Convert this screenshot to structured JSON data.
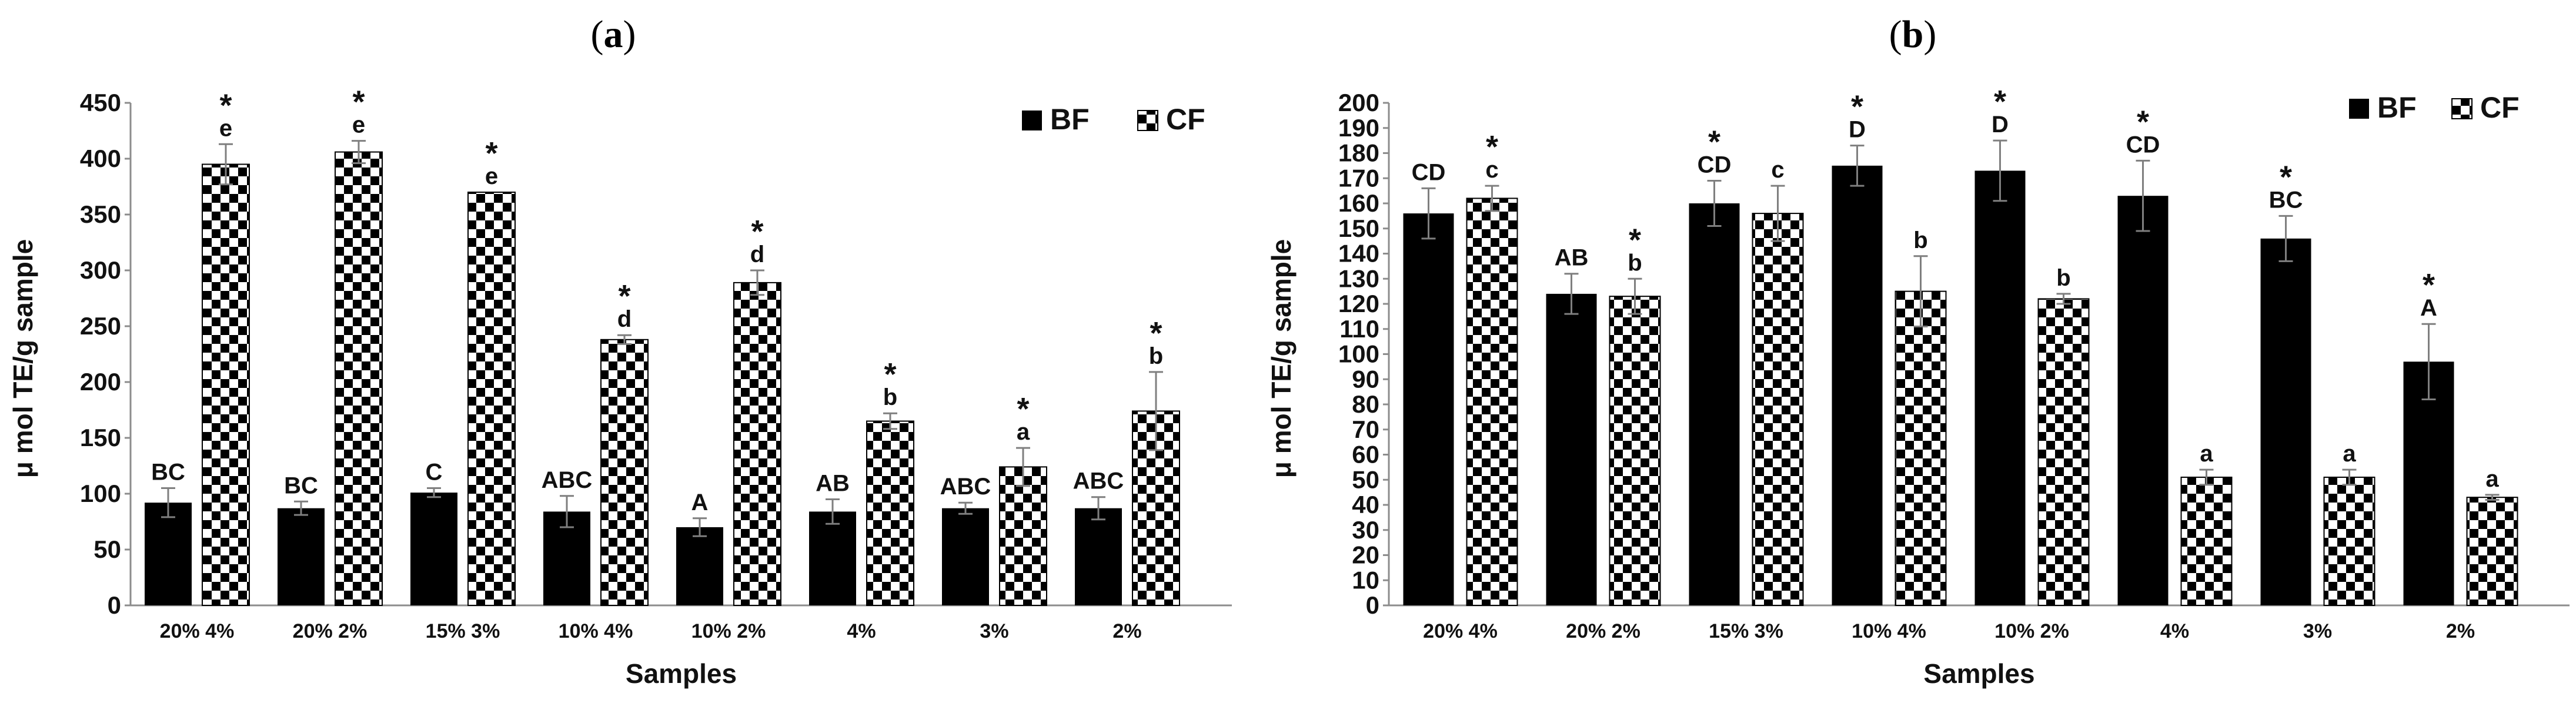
{
  "colors": {
    "bf": "#000000",
    "cf_pattern_dark": "#000000",
    "cf_pattern_light": "#ffffff",
    "axis": "#8c8c8c",
    "error_bar": "#7f7f7f"
  },
  "chart_data": [
    {
      "panel": "(a)",
      "panel_letter": "a",
      "type": "bar",
      "ylabel": "μ mol TE/g sample",
      "xlabel": "Samples",
      "ylim": [
        0,
        450
      ],
      "yticks": [
        0,
        50,
        100,
        150,
        200,
        250,
        300,
        350,
        400,
        450
      ],
      "grid": false,
      "legend_position": "top-right",
      "categories": [
        "20% 4%",
        "20% 2%",
        "15% 3%",
        "10% 4%",
        "10% 2%",
        "4%",
        "3%",
        "2%"
      ],
      "series": [
        {
          "name": "BF",
          "values": [
            92,
            87,
            101,
            84,
            70,
            84,
            87,
            87
          ],
          "errors": [
            13,
            6,
            4,
            14,
            8,
            11,
            5,
            10
          ],
          "letters": [
            "BC",
            "BC",
            "C",
            "ABC",
            "A",
            "AB",
            "ABC",
            "ABC"
          ],
          "stars": [
            false,
            false,
            false,
            false,
            false,
            false,
            false,
            false
          ]
        },
        {
          "name": "CF",
          "values": [
            395,
            406,
            370,
            238,
            289,
            165,
            124,
            174
          ],
          "errors": [
            18,
            10,
            0,
            4,
            11,
            7,
            17,
            35
          ],
          "letters": [
            "e",
            "e",
            "e",
            "d",
            "d",
            "b",
            "a",
            "b"
          ],
          "stars": [
            true,
            true,
            true,
            true,
            true,
            true,
            true,
            true
          ]
        }
      ]
    },
    {
      "panel": "(b)",
      "panel_letter": "b",
      "type": "bar",
      "ylabel": "μ mol TE/g sample",
      "xlabel": "Samples",
      "ylim": [
        0,
        200
      ],
      "yticks": [
        0,
        10,
        20,
        30,
        40,
        50,
        60,
        70,
        80,
        90,
        100,
        110,
        120,
        130,
        140,
        150,
        160,
        170,
        180,
        190,
        200
      ],
      "grid": false,
      "legend_position": "top-right",
      "categories": [
        "20% 4%",
        "20% 2%",
        "15% 3%",
        "10% 4%",
        "10% 2%",
        "4%",
        "3%",
        "2%"
      ],
      "series": [
        {
          "name": "BF",
          "values": [
            156,
            124,
            160,
            175,
            173,
            163,
            146,
            97
          ],
          "errors": [
            10,
            8,
            9,
            8,
            12,
            14,
            9,
            15
          ],
          "letters": [
            "CD",
            "AB",
            "CD",
            "D",
            "D",
            "CD",
            "BC",
            "A"
          ],
          "stars": [
            false,
            false,
            true,
            true,
            true,
            true,
            true,
            true
          ]
        },
        {
          "name": "CF",
          "values": [
            162,
            123,
            156,
            125,
            122,
            51,
            51,
            43
          ],
          "errors": [
            5,
            7,
            11,
            14,
            2,
            3,
            3,
            1
          ],
          "letters": [
            "c",
            "b",
            "c",
            "b",
            "b",
            "a",
            "a",
            "a"
          ],
          "stars": [
            true,
            true,
            false,
            false,
            false,
            false,
            false,
            false
          ]
        }
      ]
    }
  ]
}
